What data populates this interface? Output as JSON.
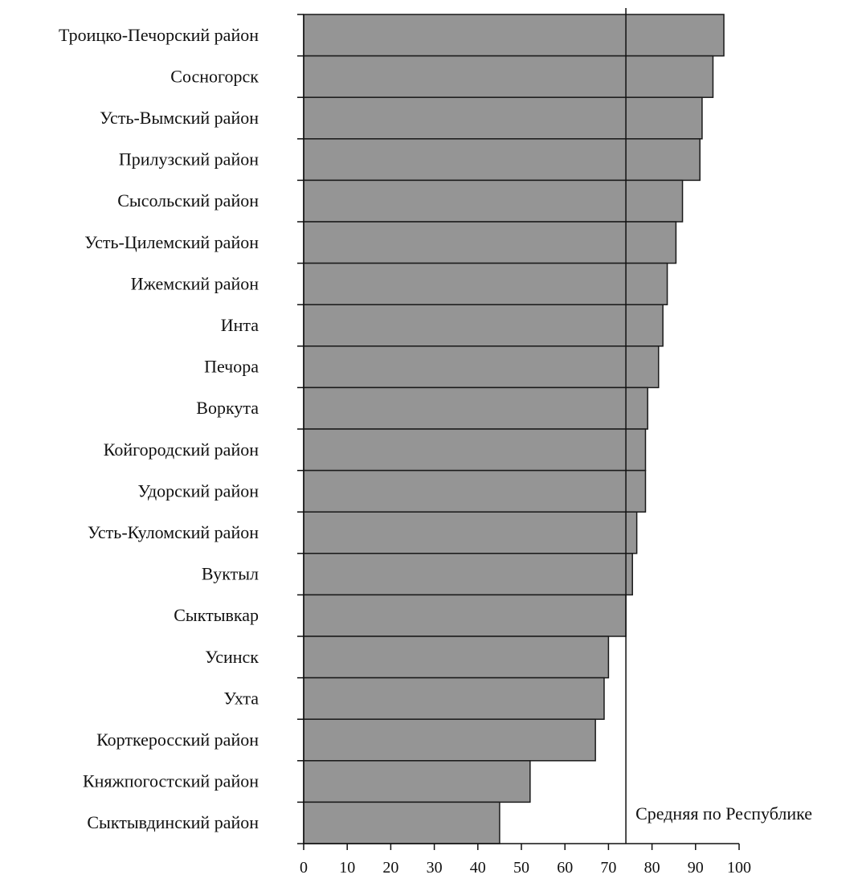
{
  "chart_data": {
    "type": "bar",
    "orientation": "horizontal",
    "categories": [
      "Троицко-Печорский район",
      "Сосногорск",
      "Усть-Вымский район",
      "Прилузский район",
      "Сысольский район",
      "Усть-Цилемский район",
      "Ижемский район",
      "Инта",
      "Печора",
      "Воркута",
      "Койгородский район",
      "Удорский район",
      "Усть-Куломский район",
      "Вуктыл",
      "Сыктывкар",
      "Усинск",
      "Ухта",
      "Корткеросский район",
      "Княжпогостский район",
      "Сыктывдинский район"
    ],
    "values": [
      96.5,
      94,
      91.5,
      91,
      87,
      85.5,
      83.5,
      82.5,
      81.5,
      79,
      78.5,
      78.5,
      76.5,
      75.5,
      74,
      70,
      69,
      67,
      52,
      45
    ],
    "xlim": [
      0,
      100
    ],
    "xticks": [
      "0",
      "10",
      "20",
      "30",
      "40",
      "50",
      "60",
      "70",
      "80",
      "90",
      "100"
    ],
    "reference_line": {
      "value": 74,
      "label": "Средняя по Республике"
    },
    "bar_color": "#959595",
    "bar_edge_color": "#1a1a1a",
    "grid": false,
    "legend": "none",
    "title": "",
    "xlabel": "",
    "ylabel": ""
  }
}
